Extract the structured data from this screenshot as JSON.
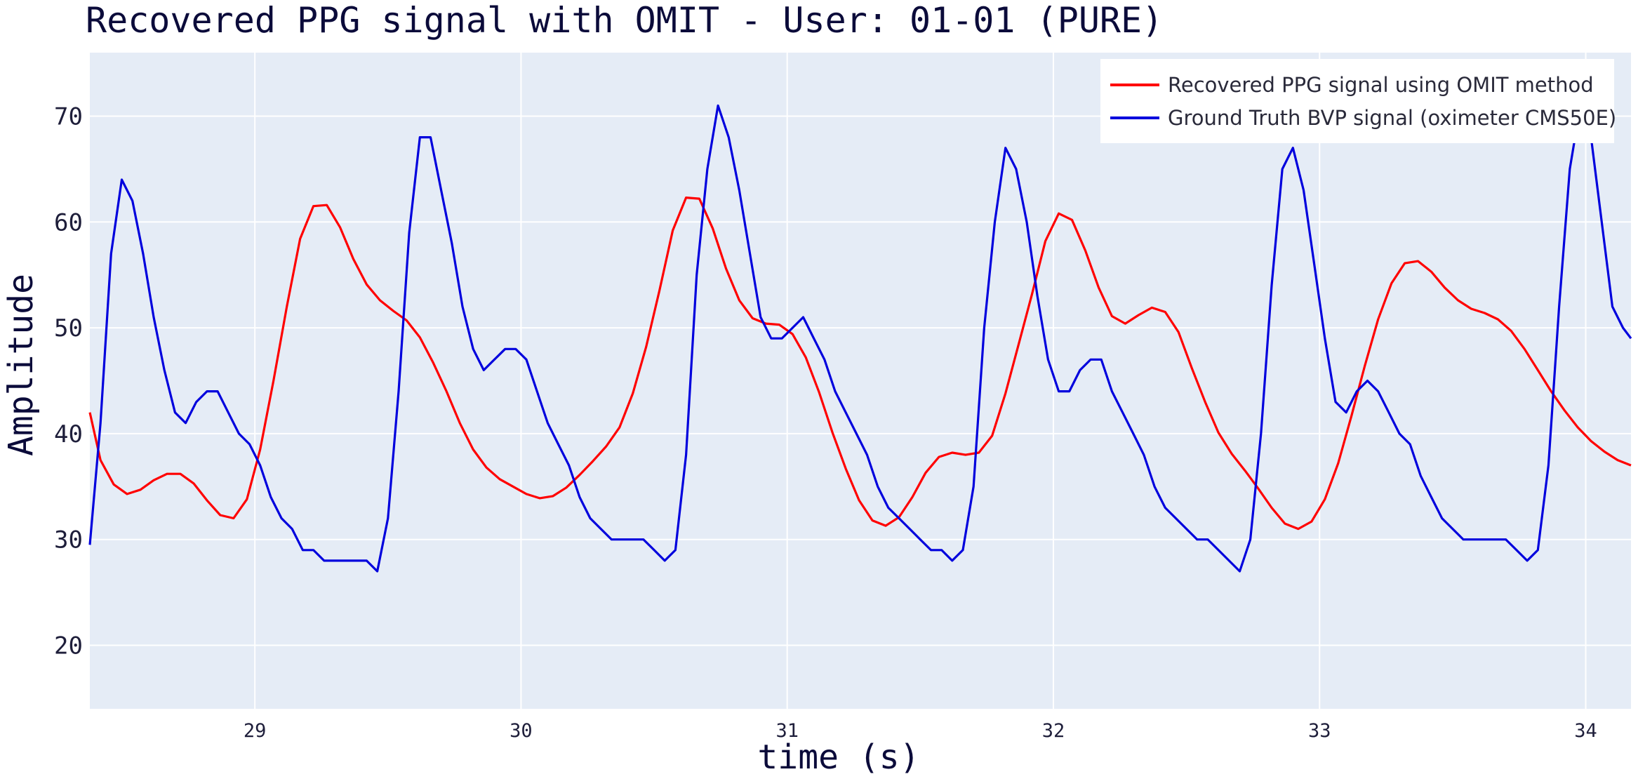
{
  "chart_data": {
    "type": "line",
    "title": "Recovered PPG signal with OMIT - User: 01-01 (PURE)",
    "xlabel": "time (s)",
    "ylabel": "Amplitude",
    "xlim": [
      28.38,
      34.17
    ],
    "ylim": [
      14,
      76
    ],
    "x_ticks": [
      29,
      30,
      31,
      32,
      33,
      34
    ],
    "y_ticks": [
      20,
      30,
      40,
      50,
      60,
      70
    ],
    "grid": true,
    "legend_position": "top-right",
    "series": [
      {
        "name": "Recovered PPG signal using OMIT method",
        "color": "#ff0000",
        "points": [
          [
            28.38,
            42
          ],
          [
            28.42,
            37.5
          ],
          [
            28.47,
            35.2
          ],
          [
            28.52,
            34.3
          ],
          [
            28.57,
            34.7
          ],
          [
            28.62,
            35.6
          ],
          [
            28.67,
            36.2
          ],
          [
            28.72,
            36.2
          ],
          [
            28.77,
            35.3
          ],
          [
            28.82,
            33.7
          ],
          [
            28.87,
            32.3
          ],
          [
            28.92,
            32
          ],
          [
            28.97,
            33.8
          ],
          [
            29.02,
            38.5
          ],
          [
            29.07,
            45
          ],
          [
            29.12,
            52
          ],
          [
            29.17,
            58.4
          ],
          [
            29.22,
            61.5
          ],
          [
            29.27,
            61.6
          ],
          [
            29.32,
            59.5
          ],
          [
            29.37,
            56.5
          ],
          [
            29.42,
            54.1
          ],
          [
            29.47,
            52.6
          ],
          [
            29.52,
            51.6
          ],
          [
            29.57,
            50.7
          ],
          [
            29.62,
            49.1
          ],
          [
            29.67,
            46.7
          ],
          [
            29.72,
            44
          ],
          [
            29.77,
            41
          ],
          [
            29.82,
            38.5
          ],
          [
            29.87,
            36.8
          ],
          [
            29.92,
            35.7
          ],
          [
            29.97,
            35
          ],
          [
            30.02,
            34.3
          ],
          [
            30.07,
            33.9
          ],
          [
            30.12,
            34.1
          ],
          [
            30.17,
            34.9
          ],
          [
            30.22,
            36.1
          ],
          [
            30.27,
            37.4
          ],
          [
            30.32,
            38.8
          ],
          [
            30.37,
            40.6
          ],
          [
            30.42,
            43.8
          ],
          [
            30.47,
            48.2
          ],
          [
            30.52,
            53.5
          ],
          [
            30.57,
            59.2
          ],
          [
            30.62,
            62.3
          ],
          [
            30.67,
            62.2
          ],
          [
            30.72,
            59.4
          ],
          [
            30.77,
            55.6
          ],
          [
            30.82,
            52.6
          ],
          [
            30.87,
            50.9
          ],
          [
            30.92,
            50.4
          ],
          [
            30.97,
            50.3
          ],
          [
            31.02,
            49.4
          ],
          [
            31.07,
            47.2
          ],
          [
            31.12,
            43.9
          ],
          [
            31.17,
            40.1
          ],
          [
            31.22,
            36.7
          ],
          [
            31.27,
            33.7
          ],
          [
            31.32,
            31.8
          ],
          [
            31.37,
            31.3
          ],
          [
            31.42,
            32.1
          ],
          [
            31.47,
            34
          ],
          [
            31.52,
            36.3
          ],
          [
            31.57,
            37.8
          ],
          [
            31.62,
            38.2
          ],
          [
            31.67,
            38
          ],
          [
            31.72,
            38.2
          ],
          [
            31.77,
            39.8
          ],
          [
            31.82,
            43.8
          ],
          [
            31.87,
            48.5
          ],
          [
            31.92,
            53.2
          ],
          [
            31.97,
            58.2
          ],
          [
            32.02,
            60.8
          ],
          [
            32.07,
            60.2
          ],
          [
            32.12,
            57.3
          ],
          [
            32.17,
            53.8
          ],
          [
            32.22,
            51.1
          ],
          [
            32.27,
            50.4
          ],
          [
            32.32,
            51.2
          ],
          [
            32.37,
            51.9
          ],
          [
            32.42,
            51.5
          ],
          [
            32.47,
            49.6
          ],
          [
            32.52,
            46.2
          ],
          [
            32.57,
            43
          ],
          [
            32.62,
            40.1
          ],
          [
            32.67,
            38.1
          ],
          [
            32.72,
            36.5
          ],
          [
            32.77,
            34.8
          ],
          [
            32.82,
            33
          ],
          [
            32.87,
            31.5
          ],
          [
            32.92,
            31
          ],
          [
            32.97,
            31.7
          ],
          [
            33.02,
            33.8
          ],
          [
            33.07,
            37.2
          ],
          [
            33.12,
            41.7
          ],
          [
            33.17,
            46.4
          ],
          [
            33.22,
            50.8
          ],
          [
            33.27,
            54.2
          ],
          [
            33.32,
            56.1
          ],
          [
            33.37,
            56.3
          ],
          [
            33.42,
            55.3
          ],
          [
            33.47,
            53.8
          ],
          [
            33.52,
            52.6
          ],
          [
            33.57,
            51.8
          ],
          [
            33.62,
            51.4
          ],
          [
            33.67,
            50.8
          ],
          [
            33.72,
            49.7
          ],
          [
            33.77,
            48
          ],
          [
            33.82,
            46
          ],
          [
            33.87,
            44
          ],
          [
            33.92,
            42.2
          ],
          [
            33.97,
            40.6
          ],
          [
            34.02,
            39.3
          ],
          [
            34.07,
            38.3
          ],
          [
            34.12,
            37.5
          ],
          [
            34.17,
            37
          ]
        ]
      },
      {
        "name": "Ground Truth BVP signal (oximeter CMS50E)",
        "color": "#0000dd",
        "points": [
          [
            28.38,
            29.5
          ],
          [
            28.42,
            41
          ],
          [
            28.46,
            57
          ],
          [
            28.5,
            64
          ],
          [
            28.54,
            62
          ],
          [
            28.58,
            57
          ],
          [
            28.62,
            51
          ],
          [
            28.66,
            46
          ],
          [
            28.7,
            42
          ],
          [
            28.74,
            41
          ],
          [
            28.78,
            43
          ],
          [
            28.82,
            44
          ],
          [
            28.86,
            44
          ],
          [
            28.9,
            42
          ],
          [
            28.94,
            40
          ],
          [
            28.98,
            39
          ],
          [
            29.02,
            37
          ],
          [
            29.06,
            34
          ],
          [
            29.1,
            32
          ],
          [
            29.14,
            31
          ],
          [
            29.18,
            29
          ],
          [
            29.22,
            29
          ],
          [
            29.26,
            28
          ],
          [
            29.3,
            28
          ],
          [
            29.34,
            28
          ],
          [
            29.38,
            28
          ],
          [
            29.42,
            28
          ],
          [
            29.46,
            27
          ],
          [
            29.5,
            32
          ],
          [
            29.54,
            44
          ],
          [
            29.58,
            59
          ],
          [
            29.62,
            68
          ],
          [
            29.66,
            68
          ],
          [
            29.7,
            63
          ],
          [
            29.74,
            58
          ],
          [
            29.78,
            52
          ],
          [
            29.82,
            48
          ],
          [
            29.86,
            46
          ],
          [
            29.9,
            47
          ],
          [
            29.94,
            48
          ],
          [
            29.98,
            48
          ],
          [
            30.02,
            47
          ],
          [
            30.06,
            44
          ],
          [
            30.1,
            41
          ],
          [
            30.14,
            39
          ],
          [
            30.18,
            37
          ],
          [
            30.22,
            34
          ],
          [
            30.26,
            32
          ],
          [
            30.3,
            31
          ],
          [
            30.34,
            30
          ],
          [
            30.38,
            30
          ],
          [
            30.42,
            30
          ],
          [
            30.46,
            30
          ],
          [
            30.5,
            29
          ],
          [
            30.54,
            28
          ],
          [
            30.58,
            29
          ],
          [
            30.62,
            38
          ],
          [
            30.66,
            55
          ],
          [
            30.7,
            65
          ],
          [
            30.74,
            71
          ],
          [
            30.78,
            68
          ],
          [
            30.82,
            63
          ],
          [
            30.86,
            57
          ],
          [
            30.9,
            51
          ],
          [
            30.94,
            49
          ],
          [
            30.98,
            49
          ],
          [
            31.02,
            50
          ],
          [
            31.06,
            51
          ],
          [
            31.1,
            49
          ],
          [
            31.14,
            47
          ],
          [
            31.18,
            44
          ],
          [
            31.22,
            42
          ],
          [
            31.26,
            40
          ],
          [
            31.3,
            38
          ],
          [
            31.34,
            35
          ],
          [
            31.38,
            33
          ],
          [
            31.42,
            32
          ],
          [
            31.46,
            31
          ],
          [
            31.5,
            30
          ],
          [
            31.54,
            29
          ],
          [
            31.58,
            29
          ],
          [
            31.62,
            28
          ],
          [
            31.66,
            29
          ],
          [
            31.7,
            35
          ],
          [
            31.74,
            50
          ],
          [
            31.78,
            60
          ],
          [
            31.82,
            67
          ],
          [
            31.86,
            65
          ],
          [
            31.9,
            60
          ],
          [
            31.94,
            53
          ],
          [
            31.98,
            47
          ],
          [
            32.02,
            44
          ],
          [
            32.06,
            44
          ],
          [
            32.1,
            46
          ],
          [
            32.14,
            47
          ],
          [
            32.18,
            47
          ],
          [
            32.22,
            44
          ],
          [
            32.26,
            42
          ],
          [
            32.3,
            40
          ],
          [
            32.34,
            38
          ],
          [
            32.38,
            35
          ],
          [
            32.42,
            33
          ],
          [
            32.46,
            32
          ],
          [
            32.5,
            31
          ],
          [
            32.54,
            30
          ],
          [
            32.58,
            30
          ],
          [
            32.62,
            29
          ],
          [
            32.66,
            28
          ],
          [
            32.7,
            27
          ],
          [
            32.74,
            30
          ],
          [
            32.78,
            40
          ],
          [
            32.82,
            54
          ],
          [
            32.86,
            65
          ],
          [
            32.9,
            67
          ],
          [
            32.94,
            63
          ],
          [
            32.98,
            56
          ],
          [
            33.02,
            49
          ],
          [
            33.06,
            43
          ],
          [
            33.1,
            42
          ],
          [
            33.14,
            44
          ],
          [
            33.18,
            45
          ],
          [
            33.22,
            44
          ],
          [
            33.26,
            42
          ],
          [
            33.3,
            40
          ],
          [
            33.34,
            39
          ],
          [
            33.38,
            36
          ],
          [
            33.42,
            34
          ],
          [
            33.46,
            32
          ],
          [
            33.5,
            31
          ],
          [
            33.54,
            30
          ],
          [
            33.58,
            30
          ],
          [
            33.62,
            30
          ],
          [
            33.66,
            30
          ],
          [
            33.7,
            30
          ],
          [
            33.74,
            29
          ],
          [
            33.78,
            28
          ],
          [
            33.82,
            29
          ],
          [
            33.86,
            37
          ],
          [
            33.9,
            52
          ],
          [
            33.94,
            65
          ],
          [
            33.98,
            71
          ],
          [
            34.02,
            68
          ],
          [
            34.06,
            60
          ],
          [
            34.1,
            52
          ],
          [
            34.14,
            50
          ],
          [
            34.17,
            49
          ]
        ]
      }
    ]
  }
}
